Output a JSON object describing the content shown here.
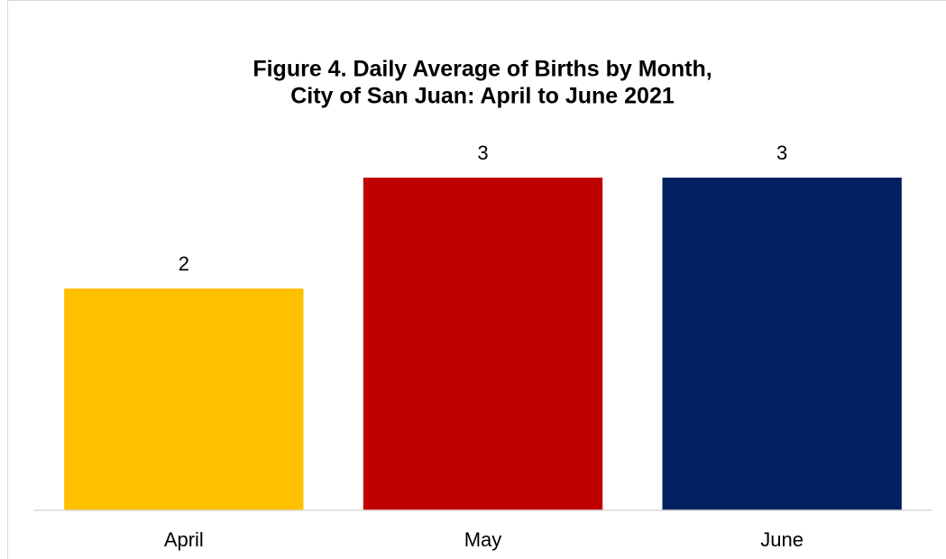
{
  "chart_data": {
    "type": "bar",
    "title": [
      "Figure 4. Daily Average of Births by Month,",
      "City of San Juan: April to June 2021"
    ],
    "categories": [
      "April",
      "May",
      "June"
    ],
    "values": [
      2,
      3,
      3
    ],
    "colors": [
      "#ffc000",
      "#c00000",
      "#002060"
    ],
    "ylim": [
      0,
      3.5
    ]
  }
}
